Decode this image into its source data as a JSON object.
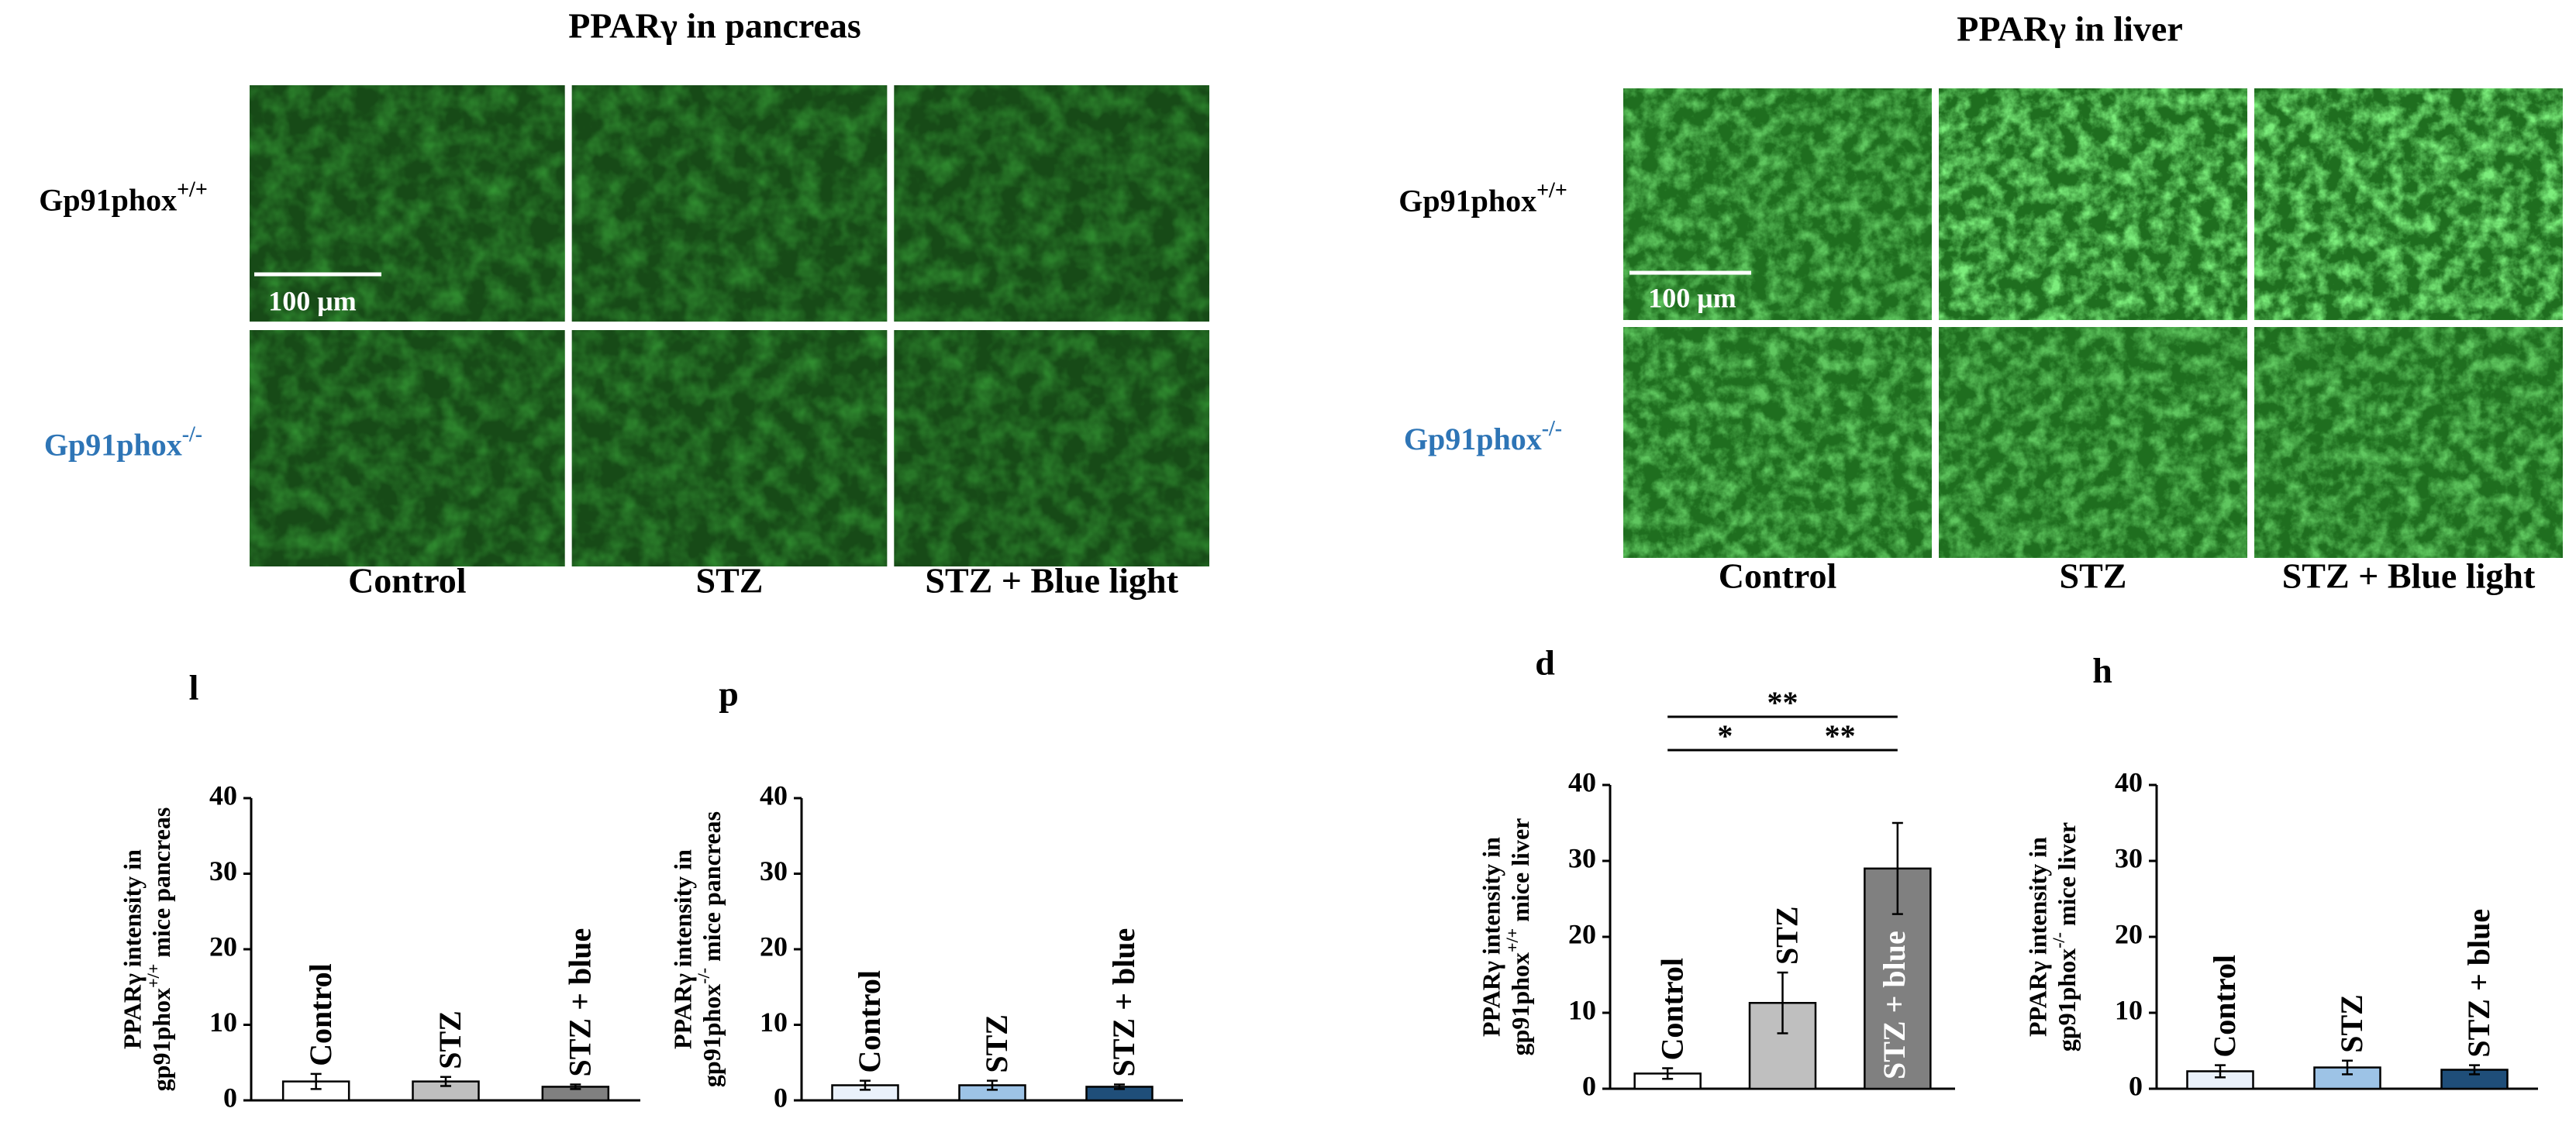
{
  "panels": [
    {
      "title": "PPARγ in pancreas",
      "row_labels": [
        {
          "text": "Gp91phox",
          "sup": "+/+"
        },
        {
          "text": "Gp91phox",
          "sup": "-/-"
        }
      ],
      "column_labels": [
        "Control",
        "STZ",
        "STZ + Blue light"
      ],
      "scale_bar": "100 μm"
    },
    {
      "title": "PPARγ in liver",
      "row_labels": [
        {
          "text": "Gp91phox",
          "sup": "+/+"
        },
        {
          "text": "Gp91phox",
          "sup": "-/-"
        }
      ],
      "column_labels": [
        "Control",
        "STZ",
        "STZ + Blue light"
      ],
      "scale_bar": "100 μm"
    }
  ],
  "chart_data": [
    {
      "type": "bar",
      "panel_label": "l",
      "ylabel": {
        "line1": "PPARγ intensity in",
        "line2": "gp91phox",
        "sup": "+/+",
        "line2_end": " mice pancreas"
      },
      "categories": [
        "Control",
        "STZ",
        "STZ + blue"
      ],
      "values": [
        2.5,
        2.5,
        1.8
      ],
      "errors": [
        1.0,
        0.6,
        0.3
      ],
      "colors": [
        "#ffffff",
        "#bfbfbf",
        "#808080"
      ],
      "ylim": [
        0,
        40
      ],
      "yticks": [
        0,
        10,
        20,
        30,
        40
      ]
    },
    {
      "type": "bar",
      "panel_label": "p",
      "ylabel": {
        "line1": "PPARγ intensity in",
        "line2": "gp91phox",
        "sup": "-/-",
        "line2_end": " mice pancreas"
      },
      "categories": [
        "Control",
        "STZ",
        "STZ + blue"
      ],
      "values": [
        2.0,
        2.0,
        1.8
      ],
      "errors": [
        0.6,
        0.6,
        0.3
      ],
      "colors": [
        "#eaf1fb",
        "#9dc3e6",
        "#1f4e79"
      ],
      "ylim": [
        0,
        40
      ],
      "yticks": [
        0,
        10,
        20,
        30,
        40
      ]
    },
    {
      "type": "bar",
      "panel_label": "d",
      "ylabel": {
        "line1": "PPARγ intensity in",
        "line2": "gp91phox",
        "sup": "+/+",
        "line2_end": " mice liver"
      },
      "categories": [
        "Control",
        "STZ",
        "STZ + blue"
      ],
      "values": [
        2.0,
        11.3,
        29.0
      ],
      "errors": [
        0.7,
        4.0,
        6.0
      ],
      "colors": [
        "#ffffff",
        "#bfbfbf",
        "#808080"
      ],
      "ylim": [
        0,
        40
      ],
      "yticks": [
        0,
        10,
        20,
        30,
        40
      ],
      "significance": [
        {
          "from": 0,
          "to": 1,
          "label": "*"
        },
        {
          "from": 1,
          "to": 2,
          "label": "**"
        },
        {
          "from": 0,
          "to": 2,
          "label": "**"
        }
      ]
    },
    {
      "type": "bar",
      "panel_label": "h",
      "ylabel": {
        "line1": "PPARγ intensity in",
        "line2": "gp91phox",
        "sup": "-/-",
        "line2_end": " mice liver"
      },
      "categories": [
        "Control",
        "STZ",
        "STZ + blue"
      ],
      "values": [
        2.3,
        2.8,
        2.5
      ],
      "errors": [
        0.8,
        0.9,
        0.6
      ],
      "colors": [
        "#eaf1fb",
        "#9dc3e6",
        "#1f4e79"
      ],
      "ylim": [
        0,
        40
      ],
      "yticks": [
        0,
        10,
        20,
        30,
        40
      ]
    }
  ]
}
